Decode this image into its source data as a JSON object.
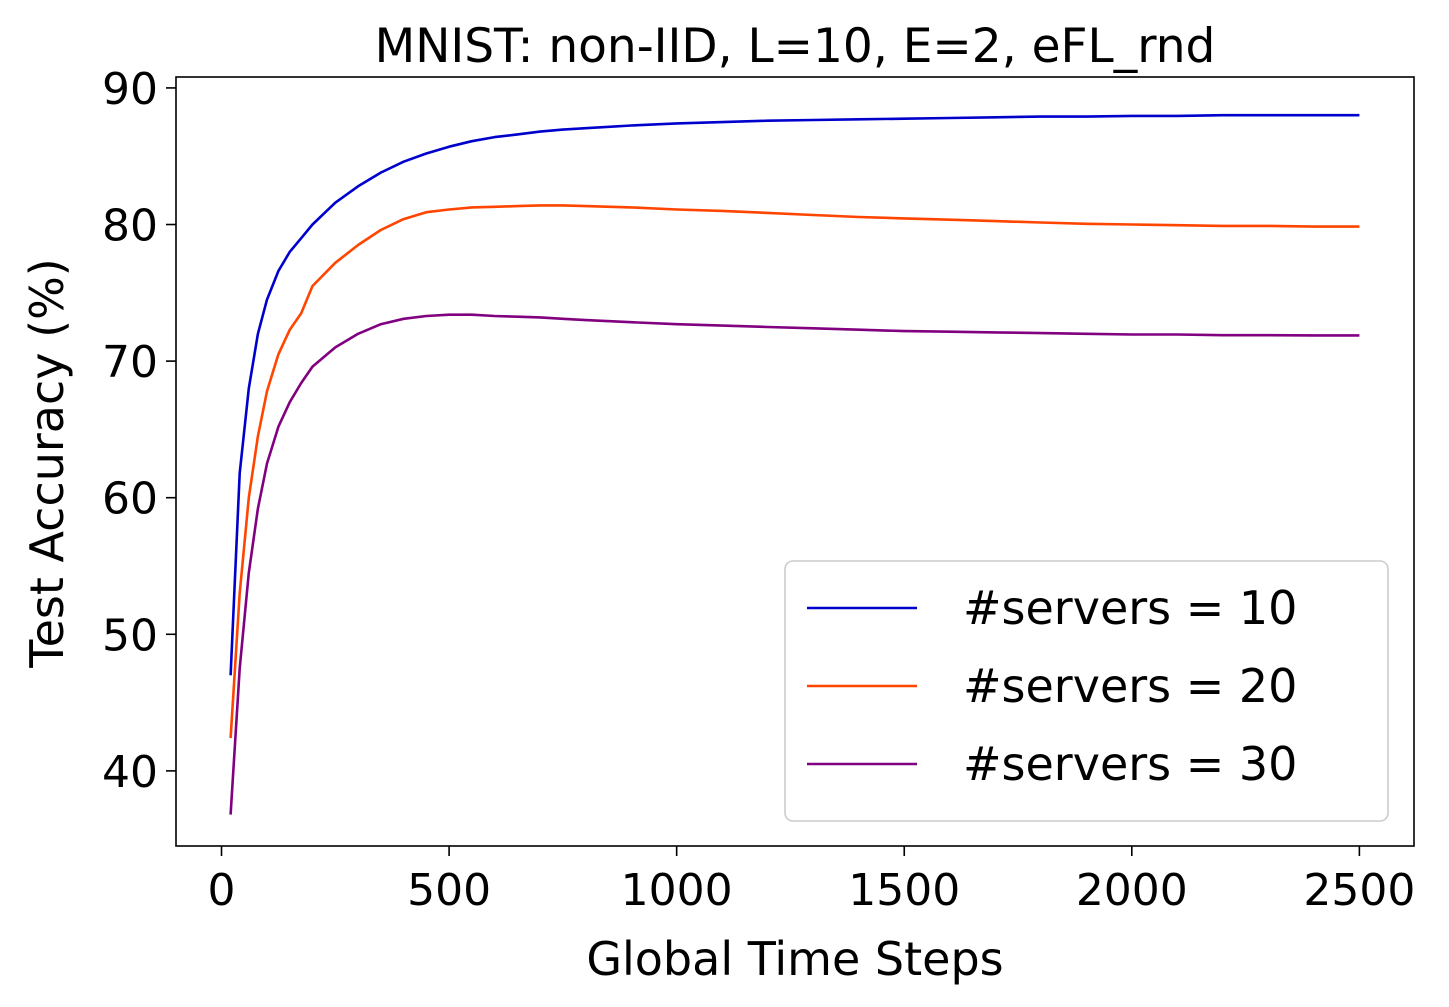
{
  "chart_data": {
    "type": "line",
    "title": "MNIST: non-IID, L=10, E=2, eFL_rnd",
    "xlabel": "Global Time Steps",
    "ylabel": "Test Accuracy (%)",
    "xlim": [
      -100,
      2620
    ],
    "ylim": [
      34.5,
      90.8
    ],
    "xticks": [
      0,
      500,
      1000,
      1500,
      2000,
      2500
    ],
    "yticks": [
      40,
      50,
      60,
      70,
      80,
      90
    ],
    "xtick_labels": [
      "0",
      "500",
      "1000",
      "1500",
      "2000",
      "2500"
    ],
    "ytick_labels": [
      "40",
      "50",
      "60",
      "70",
      "80",
      "90"
    ],
    "grid": false,
    "legend_position": "lower-right",
    "series": [
      {
        "name": "#servers = 10",
        "color": "#0000cd",
        "points": [
          [
            20,
            47.0
          ],
          [
            40,
            61.8
          ],
          [
            60,
            68.0
          ],
          [
            80,
            72.0
          ],
          [
            100,
            74.5
          ],
          [
            125,
            76.6
          ],
          [
            150,
            78.0
          ],
          [
            175,
            79.0
          ],
          [
            200,
            80.0
          ],
          [
            250,
            81.6
          ],
          [
            300,
            82.8
          ],
          [
            350,
            83.8
          ],
          [
            400,
            84.6
          ],
          [
            450,
            85.2
          ],
          [
            500,
            85.7
          ],
          [
            550,
            86.1
          ],
          [
            600,
            86.4
          ],
          [
            650,
            86.6
          ],
          [
            700,
            86.8
          ],
          [
            750,
            86.95
          ],
          [
            800,
            87.05
          ],
          [
            900,
            87.25
          ],
          [
            1000,
            87.4
          ],
          [
            1100,
            87.5
          ],
          [
            1200,
            87.6
          ],
          [
            1300,
            87.65
          ],
          [
            1400,
            87.7
          ],
          [
            1500,
            87.75
          ],
          [
            1600,
            87.8
          ],
          [
            1700,
            87.85
          ],
          [
            1800,
            87.9
          ],
          [
            1900,
            87.9
          ],
          [
            2000,
            87.95
          ],
          [
            2100,
            87.95
          ],
          [
            2200,
            88.0
          ],
          [
            2300,
            88.0
          ],
          [
            2400,
            88.0
          ],
          [
            2500,
            88.0
          ]
        ]
      },
      {
        "name": "#servers = 20",
        "color": "#ff4500",
        "points": [
          [
            20,
            42.4
          ],
          [
            40,
            53.0
          ],
          [
            60,
            60.0
          ],
          [
            80,
            64.5
          ],
          [
            100,
            67.8
          ],
          [
            125,
            70.5
          ],
          [
            150,
            72.3
          ],
          [
            175,
            73.5
          ],
          [
            200,
            75.5
          ],
          [
            250,
            77.2
          ],
          [
            300,
            78.5
          ],
          [
            350,
            79.6
          ],
          [
            400,
            80.4
          ],
          [
            450,
            80.9
          ],
          [
            500,
            81.1
          ],
          [
            550,
            81.25
          ],
          [
            600,
            81.3
          ],
          [
            650,
            81.35
          ],
          [
            700,
            81.4
          ],
          [
            750,
            81.4
          ],
          [
            800,
            81.35
          ],
          [
            900,
            81.25
          ],
          [
            1000,
            81.1
          ],
          [
            1100,
            81.0
          ],
          [
            1200,
            80.85
          ],
          [
            1300,
            80.7
          ],
          [
            1400,
            80.55
          ],
          [
            1500,
            80.45
          ],
          [
            1600,
            80.35
          ],
          [
            1700,
            80.25
          ],
          [
            1800,
            80.15
          ],
          [
            1900,
            80.05
          ],
          [
            2000,
            80.0
          ],
          [
            2100,
            79.95
          ],
          [
            2200,
            79.9
          ],
          [
            2300,
            79.9
          ],
          [
            2400,
            79.85
          ],
          [
            2500,
            79.85
          ]
        ]
      },
      {
        "name": "#servers = 30",
        "color": "#800080",
        "points": [
          [
            20,
            36.8
          ],
          [
            40,
            47.5
          ],
          [
            60,
            54.5
          ],
          [
            80,
            59.2
          ],
          [
            100,
            62.5
          ],
          [
            125,
            65.2
          ],
          [
            150,
            67.0
          ],
          [
            175,
            68.4
          ],
          [
            200,
            69.6
          ],
          [
            250,
            71.0
          ],
          [
            300,
            72.0
          ],
          [
            350,
            72.7
          ],
          [
            400,
            73.1
          ],
          [
            450,
            73.3
          ],
          [
            500,
            73.4
          ],
          [
            550,
            73.4
          ],
          [
            600,
            73.3
          ],
          [
            650,
            73.25
          ],
          [
            700,
            73.2
          ],
          [
            750,
            73.1
          ],
          [
            800,
            73.0
          ],
          [
            900,
            72.85
          ],
          [
            1000,
            72.7
          ],
          [
            1100,
            72.6
          ],
          [
            1200,
            72.5
          ],
          [
            1300,
            72.4
          ],
          [
            1400,
            72.3
          ],
          [
            1500,
            72.2
          ],
          [
            1600,
            72.15
          ],
          [
            1700,
            72.1
          ],
          [
            1800,
            72.05
          ],
          [
            1900,
            72.0
          ],
          [
            2000,
            71.95
          ],
          [
            2100,
            71.95
          ],
          [
            2200,
            71.9
          ],
          [
            2300,
            71.9
          ],
          [
            2400,
            71.88
          ],
          [
            2500,
            71.88
          ]
        ]
      }
    ]
  }
}
